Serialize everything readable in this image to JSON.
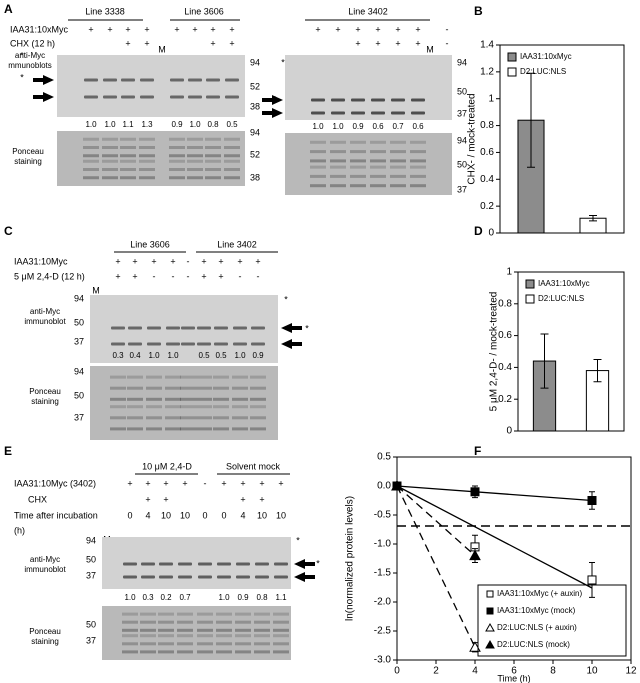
{
  "panel_a": {
    "letter": "A",
    "groups": [
      "Line 3338",
      "Line 3606",
      "Line 3402"
    ],
    "row_labels": [
      "IAA31:10xMyc",
      "CHX (12 h)"
    ],
    "left_rows": [
      [
        "+",
        "+",
        "+",
        "+",
        "+",
        "+",
        "+",
        "+"
      ],
      [
        null,
        null,
        "+",
        "+",
        null,
        null,
        "+",
        "+"
      ]
    ],
    "right_rows": [
      [
        "+",
        "+",
        "+",
        "+",
        "+",
        "+",
        "-"
      ],
      [
        null,
        null,
        "+",
        "+",
        "+",
        "+",
        "-"
      ]
    ],
    "marker": "M",
    "asterisk": "*",
    "blot_label": [
      "anti-Myc",
      "mmunoblots"
    ],
    "ponceau_label": [
      "Ponceau",
      "staining"
    ],
    "left_quant": [
      "1.0",
      "1.0",
      "1.1",
      "1.3",
      "0.9",
      "1.0",
      "0.8",
      "0.5"
    ],
    "right_quant": [
      "1.0",
      "1.0",
      "0.9",
      "0.6",
      "0.7",
      "0.6"
    ],
    "left_mw_blot": [
      "94",
      "52",
      "38"
    ],
    "left_mw_ponceau": [
      "94",
      "52",
      "38"
    ],
    "right_mw_blot": [
      "94",
      "50",
      "37"
    ],
    "right_mw_ponceau": [
      "94",
      "50",
      "37"
    ]
  },
  "panel_c": {
    "letter": "C",
    "groups": [
      "Line 3606",
      "Line 3402"
    ],
    "row_labels": [
      "IAA31:10Myc",
      "5 μM 2,4-D (12 h)"
    ],
    "rows": [
      [
        "+",
        "+",
        "+",
        "+",
        "-",
        "+",
        "+",
        "+",
        "+"
      ],
      [
        "+",
        "+",
        "-",
        "-",
        "-",
        "+",
        "+",
        "-",
        "-"
      ]
    ],
    "marker": "M",
    "asterisk": "*",
    "blot_label": [
      "anti-Myc",
      "immunoblot"
    ],
    "ponceau_label": [
      "Ponceau",
      "staining"
    ],
    "quant": [
      "0.3",
      "0.4",
      "1.0",
      "1.0",
      null,
      "0.5",
      "0.5",
      "1.0",
      "0.9"
    ],
    "mw_blot": [
      "94",
      "50",
      "37"
    ],
    "mw_ponceau": [
      "94",
      "50",
      "37"
    ]
  },
  "panel_e": {
    "letter": "E",
    "groups": [
      "10 μM 2,4-D",
      "Solvent mock"
    ],
    "row_labels": [
      "IAA31:10Myc (3402)",
      "CHX",
      "Time after incubation",
      "(h)"
    ],
    "rows": [
      [
        "+",
        "+",
        "+",
        "+",
        "-",
        "+",
        "+",
        "+",
        "+"
      ],
      [
        null,
        "+",
        "+",
        null,
        null,
        null,
        "+",
        "+",
        null
      ],
      [
        "0",
        "4",
        "10",
        "10",
        "0",
        "0",
        "4",
        "10",
        "10"
      ]
    ],
    "marker": "M",
    "asterisk": "*",
    "blot_label": [
      "anti-Myc",
      "immunoblot"
    ],
    "ponceau_label": [
      "Ponceau",
      "staining"
    ],
    "quant": [
      "1.0",
      "0.3",
      "0.2",
      "0.7",
      null,
      "1.0",
      "0.9",
      "0.8",
      "1.1"
    ],
    "mw_blot": [
      "94",
      "50",
      "37"
    ],
    "mw_ponceau": [
      "50",
      "37"
    ]
  },
  "chart_data": [
    {
      "type": "bar",
      "panel": "B",
      "ylabel": "CHX- / mock-treated",
      "categories": [
        null
      ],
      "ylim": [
        0,
        1.4
      ],
      "yticks": [
        0,
        0.2,
        0.4,
        0.6,
        0.8,
        1,
        1.2,
        1.4
      ],
      "series": [
        {
          "name": "IAA31:10xMyc",
          "color": "#8c8c8c",
          "values": [
            0.84
          ],
          "errors": [
            0.35
          ]
        },
        {
          "name": "D2:LUC:NLS",
          "color": "#ffffff",
          "values": [
            0.11
          ],
          "errors": [
            0.02
          ]
        }
      ]
    },
    {
      "type": "bar",
      "panel": "D",
      "ylabel": "5 μM 2,4-D- / mock-treated",
      "categories": [
        null
      ],
      "ylim": [
        0,
        1
      ],
      "yticks": [
        0,
        0.2,
        0.4,
        0.6,
        0.8,
        1
      ],
      "series": [
        {
          "name": "IAA31:10xMyc",
          "color": "#8c8c8c",
          "values": [
            0.44
          ],
          "errors": [
            0.17
          ]
        },
        {
          "name": "D2:LUC:NLS",
          "color": "#ffffff",
          "values": [
            0.38
          ],
          "errors": [
            0.07
          ]
        }
      ]
    },
    {
      "type": "line",
      "panel": "F",
      "xlabel": "Time (h)",
      "ylabel": "ln(normalized protein levels)",
      "xlim": [
        0,
        12
      ],
      "xticks": [
        0,
        2,
        4,
        6,
        8,
        10,
        12
      ],
      "ylim": [
        -3,
        0.5
      ],
      "yticks": [
        {
          "value": -3,
          "label": "-3.0"
        },
        -2.5,
        {
          "value": -2,
          "label": "-2.0"
        },
        -1.5,
        {
          "value": -1,
          "label": "-1.0"
        },
        -0.5,
        {
          "value": 0,
          "label": "0.0"
        },
        0.5
      ],
      "reference_line": -0.69,
      "series": [
        {
          "name": "IAA31:10xMyc (+ auxin)",
          "marker": "square",
          "color": "#ffffff",
          "line_style": "solid",
          "x": [
            0,
            4,
            10
          ],
          "values": [
            0,
            -1.05,
            -1.62
          ],
          "errors": [
            0.03,
            0.2,
            0.3
          ]
        },
        {
          "name": "IAA31:10xMyc (mock)",
          "marker": "square",
          "color": "#000000",
          "line_style": "solid",
          "x": [
            0,
            4,
            10
          ],
          "values": [
            0,
            -0.1,
            -0.25
          ],
          "errors": [
            0.03,
            0.1,
            0.15
          ]
        },
        {
          "name": "D2:LUC:NLS (+ auxin)",
          "marker": "triangle",
          "color": "#ffffff",
          "line_style": "dashed",
          "x": [
            0,
            4
          ],
          "values": [
            0,
            -2.78
          ],
          "errors": [
            0.03,
            0.08
          ]
        },
        {
          "name": "D2:LUC:NLS (mock)",
          "marker": "triangle",
          "color": "#000000",
          "line_style": "dashed",
          "x": [
            0,
            4
          ],
          "values": [
            0,
            -1.2
          ],
          "errors": [
            0.03,
            0.12
          ]
        }
      ]
    }
  ]
}
